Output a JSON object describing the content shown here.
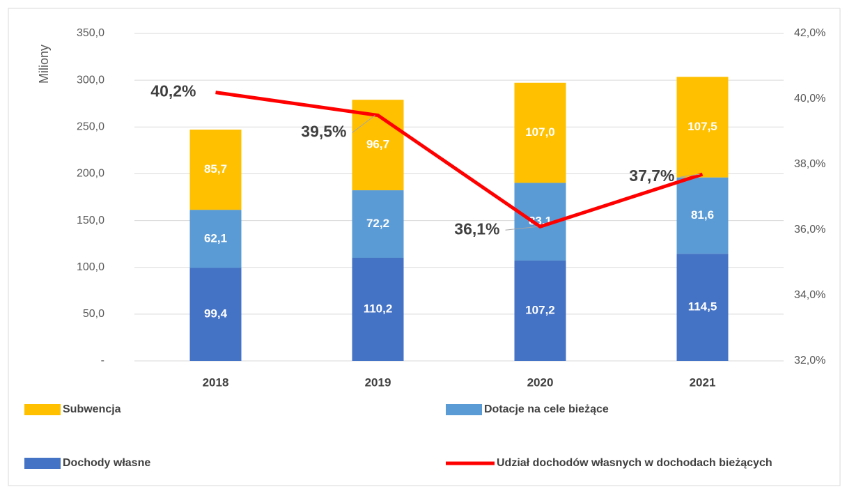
{
  "chart_data": {
    "type": "bar",
    "y_label": "Miliony",
    "categories": [
      "2018",
      "2019",
      "2020",
      "2021"
    ],
    "series": [
      {
        "name": "Dochody własne",
        "color": "#4472C4",
        "values": [
          99.4,
          110.2,
          107.2,
          114.5
        ],
        "value_labels": [
          "99,4",
          "110,2",
          "107,2",
          "114,5"
        ]
      },
      {
        "name": "Dotacje na cele bieżące",
        "color": "#5B9BD5",
        "values": [
          62.1,
          72.2,
          83.1,
          81.6
        ],
        "value_labels": [
          "62,1",
          "72,2",
          "83,1",
          "81,6"
        ]
      },
      {
        "name": "Subwencja",
        "color": "#FFC000",
        "values": [
          85.7,
          96.7,
          107.0,
          107.5
        ],
        "value_labels": [
          "85,7",
          "96,7",
          "107,0",
          "107,5"
        ]
      },
      {
        "name": "Udział dochodów własnych w dochodach bieżących",
        "color": "#FF0000",
        "type": "line",
        "axis": "y2",
        "values": [
          40.2,
          39.5,
          36.1,
          37.7
        ],
        "value_labels": [
          "40,2%",
          "39,5%",
          "36,1%",
          "37,7%"
        ]
      }
    ],
    "ylim": [
      0,
      350
    ],
    "yticks": [
      {
        "value": 0,
        "label": "-"
      },
      {
        "value": 50,
        "label": "50,0"
      },
      {
        "value": 100,
        "label": "100,0"
      },
      {
        "value": 150,
        "label": "150,0"
      },
      {
        "value": 200,
        "label": "200,0"
      },
      {
        "value": 250,
        "label": "250,0"
      },
      {
        "value": 300,
        "label": "300,0"
      },
      {
        "value": 350,
        "label": "350,0"
      }
    ],
    "y2lim": [
      32,
      42
    ],
    "y2ticks": [
      {
        "value": 32,
        "label": "32,0%"
      },
      {
        "value": 34,
        "label": "34,0%"
      },
      {
        "value": 36,
        "label": "36,0%"
      },
      {
        "value": 38,
        "label": "38,0%"
      },
      {
        "value": 40,
        "label": "40,0%"
      },
      {
        "value": 42,
        "label": "42,0%"
      }
    ],
    "grid": true,
    "legend": "bottom"
  }
}
